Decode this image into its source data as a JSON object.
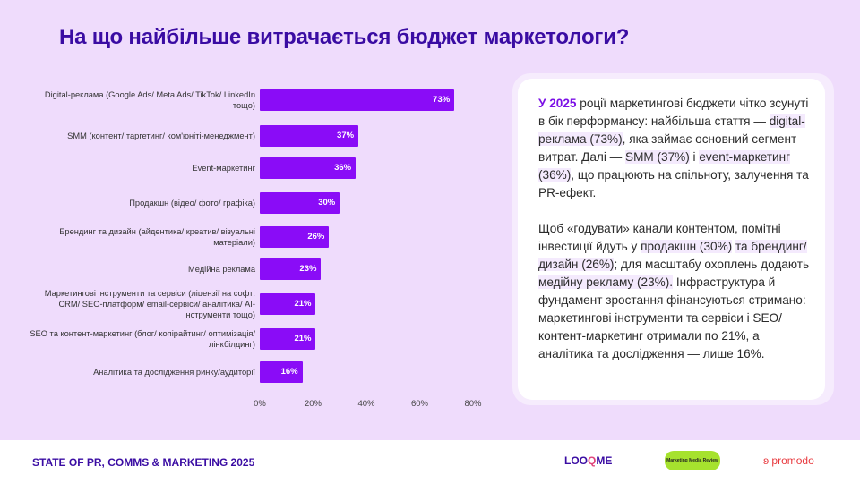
{
  "title": "На що найбільше витрачається бюджет маркетологи?",
  "chart_data": {
    "type": "bar",
    "orientation": "horizontal",
    "categories": [
      "Digital-реклама (Google Ads/ Meta Ads/ TikTok/ LinkedIn тощо)",
      "SMM (контент/ таргетинг/ ком'юніті-менеджмент)",
      "Event-маркетинг",
      "Продакшн (відео/ фото/ графіка)",
      "Брендинг та дизайн (айдентика/ креатив/ візуальні матеріали)",
      "Медійна реклама",
      "Маркетингові інструменти та сервіси (ліцензії на софт: CRM/ SEO-платформ/ email-сервіси/ аналітика/ AI-інструменти тощо)",
      "SEO та контент-маркетинг (блог/ копірайтинг/ оптимізація/ лінкбілдинг)",
      "Аналітика та дослідження ринку/аудиторії"
    ],
    "values": [
      73,
      37,
      36,
      30,
      26,
      23,
      21,
      21,
      16
    ],
    "value_labels": [
      "73%",
      "37%",
      "36%",
      "30%",
      "26%",
      "23%",
      "21%",
      "21%",
      "16%"
    ],
    "xlim": [
      0,
      80
    ],
    "ticks": [
      "0%",
      "20%",
      "40%",
      "60%",
      "80%"
    ],
    "grid": false,
    "bar_color": "#8a0cf7"
  },
  "panel": {
    "p1": [
      {
        "t": "У 2025",
        "c": "b"
      },
      {
        "t": " роції маркетингові бюджети чітко зсунуті в бік перформансу: найбільша стаття — ",
        "c": ""
      },
      {
        "t": "digital-реклама (73%)",
        "c": "hl"
      },
      {
        "t": ", яка займає основний сегмент витрат. Далі — ",
        "c": ""
      },
      {
        "t": "SMM (37%)",
        "c": "hl"
      },
      {
        "t": " і ",
        "c": ""
      },
      {
        "t": "event-маркетинг (36%)",
        "c": "hl"
      },
      {
        "t": ", що працюють на спільноту, залучення та PR-ефект.",
        "c": ""
      }
    ],
    "p2": [
      {
        "t": "Щоб «годувати» канали контентом, помітні інвестиції йдуть у ",
        "c": ""
      },
      {
        "t": "продакшн (30%)",
        "c": "hl"
      },
      {
        "t": " ",
        "c": ""
      },
      {
        "t": "та брендинг/дизайн (26%)",
        "c": "hl"
      },
      {
        "t": "; для масштабу охоплень додають ",
        "c": ""
      },
      {
        "t": "медійну рекламу (23%).",
        "c": "hl"
      },
      {
        "t": " Інфраструктура й фундамент зростання фінансуються стримано: маркетингові інструменти та сервіси і SEO/контент-маркетинг отримали по 21%, а аналітика та дослідження — лише 16%.",
        "c": ""
      }
    ]
  },
  "footer": {
    "title": "STATE OF PR, COMMS & MARKETING 2025",
    "logos": [
      "LOOQME",
      "Marketing Media Review",
      "promodo"
    ]
  },
  "colors": {
    "accent": "#3a0ca3",
    "bar": "#8a0cf7",
    "background": "#efdcfc"
  }
}
